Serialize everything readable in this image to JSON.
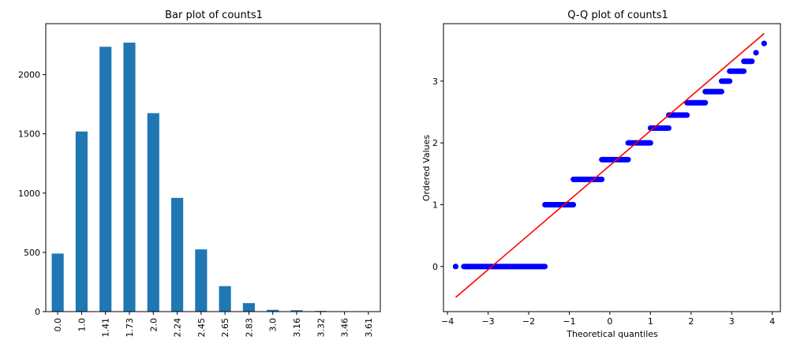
{
  "chart_data": [
    {
      "type": "bar",
      "title": "Bar plot of counts1",
      "categories": [
        "0.0",
        "1.0",
        "1.41",
        "1.73",
        "2.0",
        "2.24",
        "2.45",
        "2.65",
        "2.83",
        "3.0",
        "3.16",
        "3.32",
        "3.46",
        "3.61"
      ],
      "values": [
        490,
        1520,
        2235,
        2270,
        1675,
        960,
        525,
        215,
        72,
        15,
        12,
        6,
        2,
        1
      ],
      "ylim": [
        0,
        2430
      ],
      "yticks": [
        0,
        500,
        1000,
        1500,
        2000
      ],
      "bar_color": "#1f77b4",
      "xlabel": "",
      "ylabel": "",
      "grid": false
    },
    {
      "type": "scatter",
      "title": "Q-Q plot of counts1",
      "xlabel": "Theoretical quantiles",
      "ylabel": "Ordered Values",
      "xlim": [
        -4.1,
        4.2
      ],
      "ylim": [
        -0.73,
        3.93
      ],
      "xticks": [
        -4,
        -3,
        -2,
        -1,
        0,
        1,
        2,
        3,
        4
      ],
      "yticks": [
        0,
        1,
        2,
        3
      ],
      "point_color": "#0000ff",
      "line_color": "#ff0000",
      "fit_line": {
        "x": [
          -3.8,
          3.8
        ],
        "y": [
          -0.5,
          3.77
        ]
      },
      "segments": [
        {
          "y": 0.0,
          "x": [
            -3.6,
            -1.6
          ]
        },
        {
          "y": 1.0,
          "x": [
            -1.6,
            -0.9
          ]
        },
        {
          "y": 1.41,
          "x": [
            -0.9,
            -0.2
          ]
        },
        {
          "y": 1.73,
          "x": [
            -0.2,
            0.45
          ]
        },
        {
          "y": 2.0,
          "x": [
            0.45,
            1.0
          ]
        },
        {
          "y": 2.24,
          "x": [
            1.0,
            1.45
          ]
        },
        {
          "y": 2.45,
          "x": [
            1.45,
            1.9
          ]
        },
        {
          "y": 2.65,
          "x": [
            1.9,
            2.35
          ]
        },
        {
          "y": 2.83,
          "x": [
            2.35,
            2.75
          ]
        },
        {
          "y": 3.0,
          "x": [
            2.75,
            2.95
          ]
        },
        {
          "y": 3.16,
          "x": [
            2.95,
            3.3
          ]
        },
        {
          "y": 3.32,
          "x": [
            3.3,
            3.5
          ]
        }
      ],
      "points": [
        {
          "x": -3.8,
          "y": 0.0
        },
        {
          "x": -3.5,
          "y": 0.0
        },
        {
          "x": 3.6,
          "y": 3.46
        },
        {
          "x": 3.8,
          "y": 3.61
        }
      ]
    }
  ]
}
